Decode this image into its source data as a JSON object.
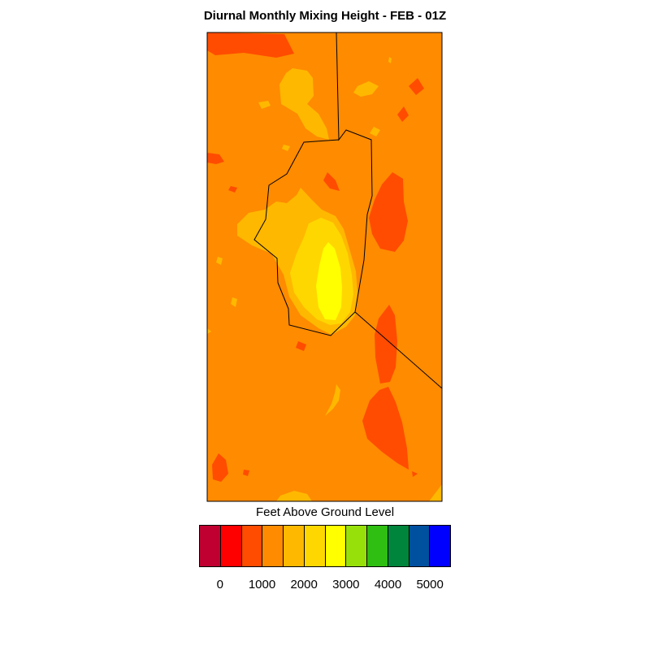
{
  "title": "Diurnal Monthly Mixing Height - FEB - 01Z",
  "colorbar": {
    "title": "Feet Above Ground Level",
    "colors": [
      "#c00030",
      "#ff0000",
      "#ff4c00",
      "#ff8b00",
      "#ffb800",
      "#ffd700",
      "#ffff00",
      "#98e00a",
      "#2fbf12",
      "#00853c",
      "#0050a0",
      "#0000ff"
    ],
    "tick_labels": [
      "0",
      "1000",
      "2000",
      "3000",
      "4000",
      "5000"
    ]
  },
  "map": {
    "background_color": "#ff8b00",
    "contour_colors": {
      "red": "#ff4c00",
      "orange_light": "#ffb800",
      "gold": "#ffd700",
      "yellow": "#ffff00"
    }
  },
  "chart_data": {
    "type": "heatmap",
    "title": "Diurnal Monthly Mixing Height - FEB - 01Z",
    "colorbar_label": "Feet Above Ground Level",
    "colorbar_ticks": [
      0,
      1000,
      2000,
      3000,
      4000,
      5000
    ],
    "colorbar_bin_count": 12,
    "dominant_level_range": [
      1000,
      1500
    ],
    "max_level_range": [
      2500,
      3000
    ]
  }
}
